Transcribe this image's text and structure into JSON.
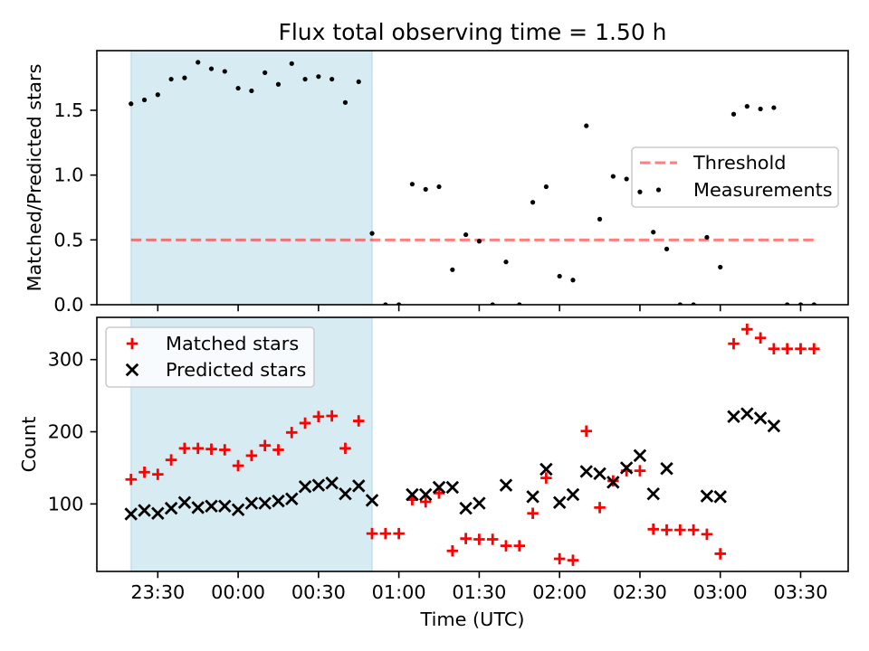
{
  "chart_data": [
    {
      "type": "scatter",
      "title": "Flux total observing time = 1.50 h",
      "ylabel": "Matched/Predicted stars",
      "x": [
        "23:20",
        "23:25",
        "23:30",
        "23:35",
        "23:40",
        "23:45",
        "23:50",
        "23:55",
        "00:00",
        "00:05",
        "00:10",
        "00:15",
        "00:20",
        "00:25",
        "00:30",
        "00:35",
        "00:40",
        "00:45",
        "00:50",
        "00:55",
        "01:00",
        "01:05",
        "01:10",
        "01:15",
        "01:20",
        "01:25",
        "01:30",
        "01:35",
        "01:40",
        "01:45",
        "01:50",
        "01:55",
        "02:00",
        "02:05",
        "02:10",
        "02:15",
        "02:20",
        "02:25",
        "02:30",
        "02:35",
        "02:40",
        "02:45",
        "02:50",
        "02:55",
        "03:00",
        "03:05",
        "03:10",
        "03:15",
        "03:20",
        "03:25",
        "03:30",
        "03:35"
      ],
      "xlim": [
        "23:07:15",
        "03:47:45"
      ],
      "ylim": [
        0,
        1.96
      ],
      "yticks": [
        "0.0",
        "0.5",
        "1.0",
        "1.5"
      ],
      "grid": false,
      "legend": {
        "position": "center right"
      },
      "highlight": {
        "start": "23:20",
        "end": "00:50",
        "color": "#add8e6"
      },
      "threshold": {
        "name": "Threshold",
        "value": 0.5,
        "color": "#ff0000"
      },
      "series": [
        {
          "name": "Measurements",
          "marker": "dot",
          "color": "#000000",
          "values": [
            1.55,
            1.58,
            1.62,
            1.74,
            1.75,
            1.87,
            1.82,
            1.8,
            1.67,
            1.65,
            1.79,
            1.7,
            1.86,
            1.74,
            1.76,
            1.74,
            1.56,
            1.72,
            0.55,
            0,
            0,
            0.93,
            0.89,
            0.91,
            0.27,
            0.54,
            0.49,
            0,
            0.33,
            0,
            0.79,
            0.91,
            0.22,
            0.19,
            1.38,
            0.66,
            0.99,
            0.97,
            0.87,
            0.56,
            0.43,
            0,
            0,
            0.52,
            0.29,
            1.47,
            1.53,
            1.51,
            1.52,
            0,
            0,
            0
          ]
        }
      ]
    },
    {
      "type": "scatter",
      "xlabel": "Time (UTC)",
      "ylabel": "Count",
      "x": [
        "23:20",
        "23:25",
        "23:30",
        "23:35",
        "23:40",
        "23:45",
        "23:50",
        "23:55",
        "00:00",
        "00:05",
        "00:10",
        "00:15",
        "00:20",
        "00:25",
        "00:30",
        "00:35",
        "00:40",
        "00:45",
        "00:50",
        "00:55",
        "01:00",
        "01:05",
        "01:10",
        "01:15",
        "01:20",
        "01:25",
        "01:30",
        "01:35",
        "01:40",
        "01:45",
        "01:50",
        "01:55",
        "02:00",
        "02:05",
        "02:10",
        "02:15",
        "02:20",
        "02:25",
        "02:30",
        "02:35",
        "02:40",
        "02:45",
        "02:50",
        "02:55",
        "03:00",
        "03:05",
        "03:10",
        "03:15",
        "03:20",
        "03:25",
        "03:30",
        "03:35"
      ],
      "xlim": [
        "23:07:15",
        "03:47:45"
      ],
      "ylim": [
        6.5,
        358.5
      ],
      "xticks": [
        "23:30",
        "00:00",
        "00:30",
        "01:00",
        "01:30",
        "02:00",
        "02:30",
        "03:00",
        "03:30"
      ],
      "yticks": [
        "100",
        "200",
        "300"
      ],
      "grid": false,
      "legend": {
        "position": "upper left"
      },
      "highlight": {
        "start": "23:20",
        "end": "00:50",
        "color": "#add8e6"
      },
      "series": [
        {
          "name": "Matched stars",
          "marker": "plus",
          "color": "#ff0000",
          "values": [
            134,
            144,
            141,
            161,
            177,
            177,
            176,
            175,
            153,
            167,
            181,
            175,
            199,
            212,
            221,
            222,
            177,
            215,
            59,
            59,
            59,
            106,
            103,
            115,
            35,
            52,
            51,
            51,
            42,
            42,
            87,
            136,
            24,
            22,
            201,
            95,
            132,
            146,
            146,
            65,
            64,
            64,
            64,
            58,
            31,
            322,
            342,
            330,
            315,
            315,
            315,
            315
          ]
        },
        {
          "name": "Predicted stars",
          "marker": "x",
          "color": "#000000",
          "values": [
            86,
            91,
            87,
            94,
            102,
            95,
            97,
            97,
            92,
            101,
            101,
            104,
            107,
            124,
            126,
            129,
            114,
            125,
            105,
            null,
            null,
            113,
            113,
            123,
            123,
            94,
            101,
            null,
            126,
            null,
            110,
            148,
            102,
            113,
            145,
            142,
            130,
            150,
            167,
            114,
            149,
            null,
            null,
            111,
            110,
            221,
            225,
            219,
            208,
            null,
            null,
            null
          ]
        }
      ]
    }
  ]
}
